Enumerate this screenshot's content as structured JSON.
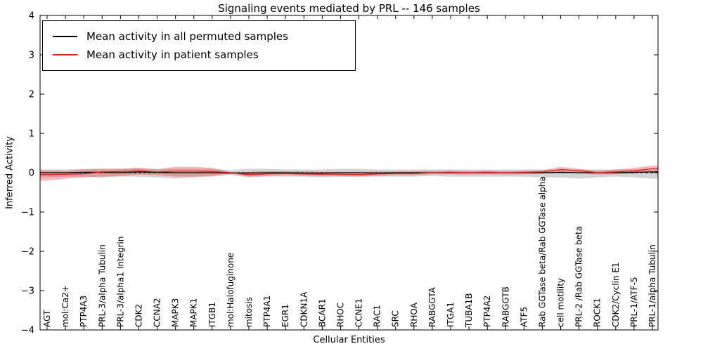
{
  "figure": {
    "background": "#ffffff",
    "frame_color": "#000000"
  },
  "chart_data": {
    "type": "line",
    "title": "Signaling events mediated by PRL -- 146 samples",
    "xlabel": "Cellular Entities",
    "ylabel": "Inferred Activity",
    "ylim": [
      -4,
      4
    ],
    "yticks": [
      -4,
      -3,
      -2,
      -1,
      0,
      1,
      2,
      3,
      4
    ],
    "ytick_labels": [
      "−4",
      "−3",
      "−2",
      "−1",
      "0",
      "1",
      "2",
      "3",
      "4"
    ],
    "grid": false,
    "legend_position": "upper left",
    "categories": [
      "AGT",
      "mol:Ca2+",
      "PTP4A3",
      "PRL-3/alpha Tubulin",
      "PRL-3/alpha1 Integrin",
      "CDK2",
      "CCNA2",
      "MAPK3",
      "MAPK1",
      "ITGB1",
      "mol:Halofuginone",
      "mitosis",
      "PTP4A1",
      "EGR1",
      "CDKN1A",
      "BCAR1",
      "RHOC",
      "CCNE1",
      "RAC1",
      "SRC",
      "RHOA",
      "RABGGTA",
      "ITGA1",
      "TUBA1B",
      "PTP4A2",
      "RABGGTB",
      "ATF5",
      "Rab GGTase beta/Rab GGTase alpha",
      "cell motility",
      "PRL-2 /Rab GGTase beta",
      "ROCK1",
      "CDK2/Cyclin E1",
      "PRL-1/ATF-5",
      "PRL-1/alpha Tubulin"
    ],
    "zero_line": {
      "style": "dashed",
      "color": "#000000",
      "y": 0
    },
    "series": [
      {
        "name": "Mean activity in all permuted samples",
        "color": "#000000",
        "band_color": "#b0b0b0",
        "band_opacity": 0.55,
        "values": [
          0.0,
          0.0,
          0.01,
          0.01,
          0.0,
          0.02,
          0.01,
          0.0,
          0.0,
          0.0,
          -0.01,
          -0.01,
          0.0,
          0.0,
          -0.01,
          -0.01,
          0.0,
          0.0,
          -0.01,
          0.0,
          0.0,
          0.0,
          0.0,
          0.0,
          0.0,
          0.0,
          0.0,
          0.0,
          0.01,
          0.0,
          0.0,
          0.0,
          0.01,
          0.02
        ],
        "band_upper": [
          0.08,
          0.08,
          0.1,
          0.1,
          0.1,
          0.12,
          0.1,
          0.1,
          0.1,
          0.1,
          0.06,
          0.1,
          0.1,
          0.08,
          0.08,
          0.08,
          0.1,
          0.1,
          0.08,
          0.08,
          0.08,
          0.08,
          0.08,
          0.08,
          0.08,
          0.08,
          0.08,
          0.08,
          0.08,
          0.08,
          0.08,
          0.08,
          0.08,
          0.08
        ],
        "band_lower": [
          -0.12,
          -0.1,
          -0.1,
          -0.12,
          -0.1,
          -0.1,
          -0.12,
          -0.15,
          -0.12,
          -0.1,
          -0.06,
          -0.12,
          -0.1,
          -0.1,
          -0.1,
          -0.12,
          -0.1,
          -0.1,
          -0.1,
          -0.1,
          -0.1,
          -0.08,
          -0.1,
          -0.1,
          -0.1,
          -0.1,
          -0.1,
          -0.12,
          -0.12,
          -0.15,
          -0.12,
          -0.1,
          -0.12,
          -0.15
        ]
      },
      {
        "name": "Mean activity in patient samples",
        "color": "#dd2222",
        "band_color": "#ee3333",
        "band_opacity": 0.35,
        "values": [
          -0.05,
          -0.04,
          -0.03,
          0.02,
          0.03,
          0.05,
          0.02,
          0.04,
          0.04,
          0.03,
          0.0,
          -0.05,
          -0.03,
          -0.02,
          -0.03,
          -0.04,
          -0.04,
          -0.05,
          -0.03,
          -0.02,
          -0.02,
          0.0,
          0.01,
          0.0,
          0.01,
          0.0,
          0.01,
          0.02,
          0.08,
          0.05,
          0.0,
          0.02,
          0.05,
          0.1
        ],
        "band_upper": [
          0.06,
          0.05,
          0.08,
          0.1,
          0.1,
          0.12,
          0.08,
          0.15,
          0.15,
          0.12,
          0.02,
          0.02,
          0.04,
          0.04,
          0.03,
          0.02,
          0.02,
          0.02,
          0.03,
          0.03,
          0.04,
          0.05,
          0.05,
          0.04,
          0.05,
          0.04,
          0.05,
          0.06,
          0.15,
          0.1,
          0.05,
          0.08,
          0.12,
          0.18
        ],
        "band_lower": [
          -0.2,
          -0.15,
          -0.12,
          -0.1,
          -0.08,
          -0.05,
          -0.06,
          -0.1,
          -0.1,
          -0.08,
          -0.02,
          -0.1,
          -0.08,
          -0.06,
          -0.08,
          -0.08,
          -0.09,
          -0.1,
          -0.08,
          -0.06,
          -0.06,
          -0.04,
          -0.04,
          -0.05,
          -0.04,
          -0.05,
          -0.04,
          -0.03,
          0.0,
          -0.02,
          -0.05,
          -0.04,
          -0.02,
          0.02
        ]
      }
    ]
  }
}
